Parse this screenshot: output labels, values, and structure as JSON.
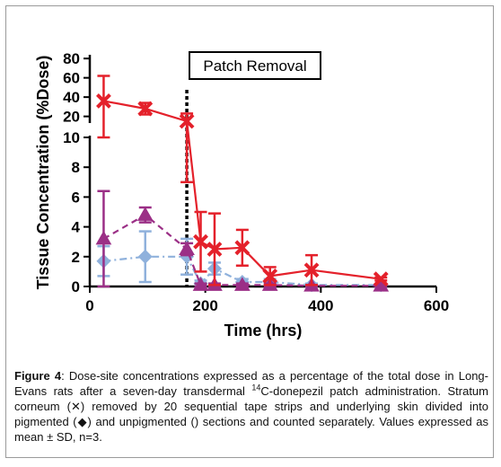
{
  "chart_data": {
    "type": "line",
    "xlabel": "Time  (hrs)",
    "ylabel": "Tissue Concentration (%Dose)",
    "xlim": [
      0,
      600
    ],
    "x_ticks": [
      "0",
      "200",
      "400",
      "600"
    ],
    "y_ticks_lower": [
      "0",
      "2",
      "4",
      "6",
      "8",
      "10"
    ],
    "y_ticks_upper": [
      "20",
      "40",
      "60",
      "80"
    ],
    "ylim_lower": [
      0,
      10
    ],
    "ylim_upper": [
      15,
      82
    ],
    "annotation": "Patch Removal",
    "annotation_x": 168,
    "series": [
      {
        "marker": "x",
        "color": "#e4212b",
        "linestyle": "solid",
        "points": [
          {
            "x": 24,
            "y": 36,
            "err": 26
          },
          {
            "x": 96,
            "y": 28,
            "err": 6
          },
          {
            "x": 168,
            "y": 15,
            "err": 8
          },
          {
            "x": 192,
            "y": 3.0,
            "err": 2.0
          },
          {
            "x": 216,
            "y": 2.5,
            "err": 2.4
          },
          {
            "x": 264,
            "y": 2.6,
            "err": 1.2
          },
          {
            "x": 312,
            "y": 0.7,
            "err": 0.6
          },
          {
            "x": 384,
            "y": 1.1,
            "err": 1.0
          },
          {
            "x": 504,
            "y": 0.5,
            "err": 0.1
          }
        ]
      },
      {
        "marker": "triangle",
        "color": "#9b2f86",
        "linestyle": "dashed",
        "points": [
          {
            "x": 24,
            "y": 3.2,
            "err": 3.2
          },
          {
            "x": 96,
            "y": 4.8,
            "err": 0.5
          },
          {
            "x": 168,
            "y": 2.5,
            "err": 0.4
          },
          {
            "x": 192,
            "y": 0.1,
            "err": 0.1
          },
          {
            "x": 216,
            "y": 0.1,
            "err": 0.1
          },
          {
            "x": 264,
            "y": 0.1,
            "err": 0.1
          },
          {
            "x": 312,
            "y": 0.1,
            "err": 0.1
          },
          {
            "x": 384,
            "y": 0.05,
            "err": 0.05
          },
          {
            "x": 504,
            "y": 0.05,
            "err": 0.05
          }
        ]
      },
      {
        "marker": "diamond",
        "color": "#8fb1dc",
        "linestyle": "dashdot",
        "points": [
          {
            "x": 24,
            "y": 1.7,
            "err": 1.0
          },
          {
            "x": 96,
            "y": 2.0,
            "err": 1.7
          },
          {
            "x": 168,
            "y": 2.0,
            "err": 1.2
          },
          {
            "x": 192,
            "y": 0.2,
            "err": 0.2
          },
          {
            "x": 216,
            "y": 1.2,
            "err": 0.4
          },
          {
            "x": 264,
            "y": 0.3,
            "err": 0.2
          },
          {
            "x": 312,
            "y": 0.3,
            "err": 0.2
          },
          {
            "x": 384,
            "y": 0.1,
            "err": 0.1
          },
          {
            "x": 504,
            "y": 0.1,
            "err": 0.05
          }
        ]
      }
    ]
  },
  "caption": {
    "label": "Figure 4",
    "text_1": ":  Dose-site concentrations expressed as a percentage of the total dose in Long-Evans rats after a seven-day transdermal ",
    "sup": "14",
    "text_2": "C-donepezil patch administration.  Stratum corneum (✕) removed by 20 sequential tape strips and underlying skin divided into pigmented (◆) and unpigmented () sections and counted separately. Values expressed as mean ± SD, n=3."
  }
}
